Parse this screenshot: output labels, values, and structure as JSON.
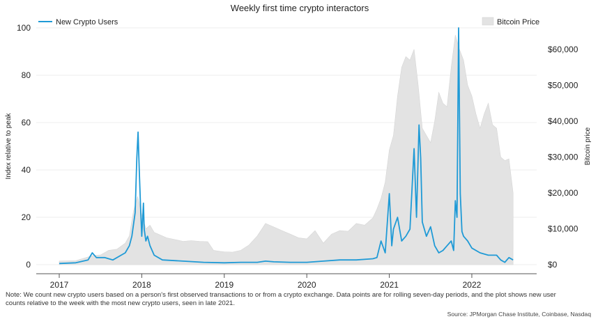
{
  "chart_data": {
    "type": "line",
    "title": "Weekly first time crypto interactors",
    "ylabel": "Index relative to peak",
    "y2label": "Bitcoin price",
    "ylim": [
      0,
      100
    ],
    "y2lim": [
      0,
      66000
    ],
    "xlim": [
      2017,
      2022.6
    ],
    "x_ticks": [
      "2017",
      "2018",
      "2019",
      "2020",
      "2021",
      "2022"
    ],
    "y_ticks": [
      "0",
      "20",
      "40",
      "60",
      "80",
      "100"
    ],
    "y2_ticks": [
      "$0",
      "$10,000",
      "$20,000",
      "$30,000",
      "$40,000",
      "$50,000",
      "$60,000"
    ],
    "legend": {
      "line_label": "New Crypto Users",
      "area_label": "Bitcoin Price",
      "line_color": "#1f9ad6",
      "area_color": "#e3e3e3"
    },
    "series": [
      {
        "name": "New Crypto Users",
        "kind": "line",
        "axis": "left",
        "x": [
          2017.0,
          2017.2,
          2017.35,
          2017.4,
          2017.45,
          2017.55,
          2017.65,
          2017.75,
          2017.8,
          2017.85,
          2017.88,
          2017.92,
          2017.94,
          2017.955,
          2017.97,
          2017.985,
          2018.0,
          2018.02,
          2018.03,
          2018.05,
          2018.07,
          2018.1,
          2018.15,
          2018.25,
          2018.5,
          2018.75,
          2019.0,
          2019.2,
          2019.4,
          2019.5,
          2019.6,
          2019.8,
          2020.0,
          2020.2,
          2020.4,
          2020.6,
          2020.8,
          2020.85,
          2020.9,
          2020.95,
          2021.0,
          2021.03,
          2021.05,
          2021.1,
          2021.15,
          2021.2,
          2021.25,
          2021.3,
          2021.33,
          2021.36,
          2021.38,
          2021.4,
          2021.45,
          2021.5,
          2021.55,
          2021.6,
          2021.65,
          2021.7,
          2021.75,
          2021.78,
          2021.8,
          2021.82,
          2021.84,
          2021.86,
          2021.88,
          2021.9,
          2021.95,
          2022.0,
          2022.1,
          2022.2,
          2022.3,
          2022.35,
          2022.4,
          2022.45,
          2022.5
        ],
        "values": [
          0.5,
          0.8,
          2,
          5,
          3,
          3,
          2,
          4,
          5,
          8,
          12,
          22,
          45,
          56,
          40,
          25,
          12,
          26,
          15,
          10,
          12,
          8,
          4,
          2,
          1.5,
          1,
          0.8,
          1,
          1,
          1.5,
          1.2,
          1,
          1,
          1.5,
          2,
          2,
          2.5,
          3,
          10,
          5,
          30,
          8,
          15,
          20,
          10,
          12,
          15,
          49,
          20,
          59,
          45,
          18,
          12,
          16,
          8,
          5,
          6,
          8,
          10,
          6,
          27,
          20,
          100,
          30,
          14,
          12,
          10,
          7,
          5,
          4,
          4,
          2,
          1,
          3,
          2
        ]
      },
      {
        "name": "Bitcoin Price",
        "kind": "area",
        "axis": "right",
        "x": [
          2017.0,
          2017.2,
          2017.4,
          2017.5,
          2017.6,
          2017.7,
          2017.8,
          2017.85,
          2017.9,
          2017.95,
          2018.0,
          2018.05,
          2018.1,
          2018.15,
          2018.2,
          2018.3,
          2018.4,
          2018.5,
          2018.6,
          2018.7,
          2018.8,
          2018.87,
          2018.95,
          2019.0,
          2019.1,
          2019.2,
          2019.3,
          2019.4,
          2019.5,
          2019.6,
          2019.7,
          2019.8,
          2019.9,
          2020.0,
          2020.1,
          2020.2,
          2020.3,
          2020.4,
          2020.5,
          2020.6,
          2020.7,
          2020.8,
          2020.85,
          2020.9,
          2020.95,
          2021.0,
          2021.05,
          2021.1,
          2021.15,
          2021.2,
          2021.25,
          2021.3,
          2021.35,
          2021.4,
          2021.45,
          2021.5,
          2021.55,
          2021.6,
          2021.65,
          2021.7,
          2021.75,
          2021.8,
          2021.85,
          2021.9,
          2021.95,
          2022.0,
          2022.05,
          2022.1,
          2022.15,
          2022.2,
          2022.25,
          2022.3,
          2022.35,
          2022.4,
          2022.45,
          2022.5
        ],
        "values": [
          1000,
          1100,
          2500,
          2700,
          4000,
          4300,
          6000,
          8000,
          15000,
          19000,
          14000,
          10000,
          11000,
          9000,
          8500,
          7500,
          7000,
          6500,
          6700,
          6500,
          6400,
          4000,
          3700,
          3600,
          3500,
          4000,
          5500,
          8000,
          11500,
          10500,
          9500,
          8500,
          7500,
          7200,
          9500,
          6000,
          8500,
          9500,
          9300,
          11500,
          11000,
          13000,
          15500,
          18500,
          23000,
          32000,
          36000,
          47000,
          55000,
          58000,
          57000,
          60000,
          50000,
          38000,
          36000,
          34000,
          40000,
          48000,
          45000,
          44000,
          55000,
          64000,
          60000,
          57000,
          50000,
          47000,
          42000,
          38000,
          42000,
          45000,
          39000,
          38000,
          30000,
          29000,
          29500,
          20000
        ]
      }
    ]
  },
  "note": {
    "line1": "Note: We count new crypto users based on a person's first observed transactions to or from a crypto exchange. Data points are for rolling seven-day periods, and the plot shows new user",
    "line2": "counts relative to the week with the most new crypto users, seen in late 2021."
  },
  "source": "Source: JPMorgan Chase Institute, Coinbase, Nasdaq"
}
